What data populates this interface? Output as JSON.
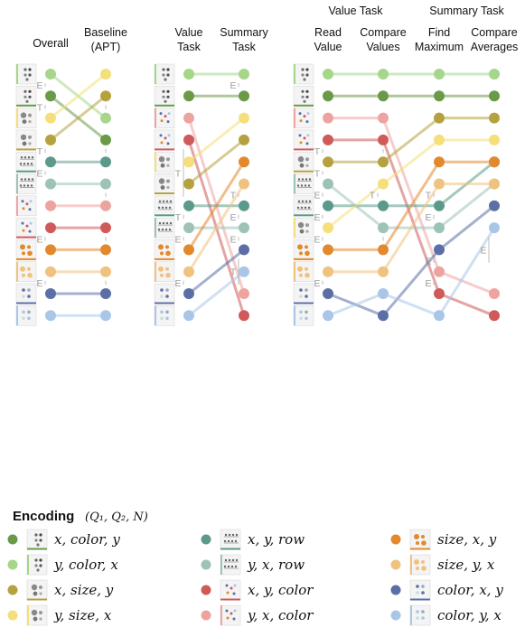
{
  "colors": {
    "dark_green": "#6a9a48",
    "light_green": "#a6d68a",
    "olive": "#b5a23f",
    "yellow": "#f5df7a",
    "dark_teal": "#5b9a8a",
    "light_teal": "#9dc2b6",
    "red": "#d05a5a",
    "pink": "#eda4a0",
    "orange": "#e3892d",
    "light_orange": "#f0c27f",
    "dark_blue": "#5b6fa6",
    "light_blue": "#a9c6e7",
    "separator": "#bdbdbd"
  },
  "chart_data": [
    {
      "type": "slope",
      "panel": "overall-vs-baseline",
      "columns": [
        "Overall",
        "Baseline\n(APT)"
      ],
      "top_headers": [],
      "series": [
        {
          "enc": "y_color_x",
          "color": "light_green",
          "ranks": [
            1,
            3
          ]
        },
        {
          "enc": "x_color_y",
          "color": "dark_green",
          "ranks": [
            2,
            4
          ]
        },
        {
          "enc": "y_size_x",
          "color": "yellow",
          "ranks": [
            3,
            1
          ]
        },
        {
          "enc": "x_size_y",
          "color": "olive",
          "ranks": [
            4,
            2
          ]
        },
        {
          "enc": "x_y_row",
          "color": "dark_teal",
          "ranks": [
            5,
            5
          ]
        },
        {
          "enc": "y_x_row",
          "color": "light_teal",
          "ranks": [
            6,
            6
          ]
        },
        {
          "enc": "y_x_color",
          "color": "pink",
          "ranks": [
            7,
            7
          ]
        },
        {
          "enc": "x_y_color",
          "color": "red",
          "ranks": [
            8,
            8
          ]
        },
        {
          "enc": "size_x_y",
          "color": "orange",
          "ranks": [
            9,
            9
          ]
        },
        {
          "enc": "size_y_x",
          "color": "light_orange",
          "ranks": [
            10,
            10
          ]
        },
        {
          "enc": "color_x_y",
          "color": "dark_blue",
          "ranks": [
            11,
            11
          ]
        },
        {
          "enc": "color_y_x",
          "color": "light_blue",
          "ranks": [
            12,
            12
          ]
        }
      ],
      "separators": [
        {
          "col": 0,
          "from": 1,
          "to": 2,
          "label": "E"
        },
        {
          "col": 0,
          "from": 2,
          "to": 3,
          "label": "T"
        },
        {
          "col": 0,
          "from": 4,
          "to": 5,
          "label": "T"
        },
        {
          "col": 0,
          "from": 5,
          "to": 6,
          "label": "E"
        },
        {
          "col": 0,
          "from": 8,
          "to": 9,
          "label": "E"
        },
        {
          "col": 0,
          "from": 10,
          "to": 11,
          "label": "E"
        },
        {
          "col": 1,
          "from": 2,
          "to": 3,
          "label": ""
        },
        {
          "col": 1,
          "from": 4,
          "to": 5,
          "label": ""
        },
        {
          "col": 1,
          "from": 6,
          "to": 7,
          "label": ""
        },
        {
          "col": 1,
          "from": 8,
          "to": 9,
          "label": ""
        },
        {
          "col": 1,
          "from": 10,
          "to": 11,
          "label": ""
        }
      ]
    },
    {
      "type": "slope",
      "panel": "value-vs-summary",
      "columns": [
        "Value\nTask",
        "Summary\nTask"
      ],
      "top_headers": [],
      "series": [
        {
          "enc": "y_color_x",
          "color": "light_green",
          "ranks": [
            1,
            1
          ]
        },
        {
          "enc": "x_color_y",
          "color": "dark_green",
          "ranks": [
            2,
            2
          ]
        },
        {
          "enc": "y_x_color",
          "color": "pink",
          "ranks": [
            3,
            11
          ]
        },
        {
          "enc": "x_y_color",
          "color": "red",
          "ranks": [
            4,
            12
          ]
        },
        {
          "enc": "y_size_x",
          "color": "yellow",
          "ranks": [
            5,
            3
          ]
        },
        {
          "enc": "x_size_y",
          "color": "olive",
          "ranks": [
            6,
            4
          ]
        },
        {
          "enc": "x_y_row",
          "color": "dark_teal",
          "ranks": [
            7,
            7
          ]
        },
        {
          "enc": "y_x_row",
          "color": "light_teal",
          "ranks": [
            8,
            8
          ]
        },
        {
          "enc": "size_x_y",
          "color": "orange",
          "ranks": [
            9,
            5
          ]
        },
        {
          "enc": "size_y_x",
          "color": "light_orange",
          "ranks": [
            10,
            6
          ]
        },
        {
          "enc": "color_x_y",
          "color": "dark_blue",
          "ranks": [
            11,
            9
          ]
        },
        {
          "enc": "color_y_x",
          "color": "light_blue",
          "ranks": [
            12,
            10
          ]
        }
      ],
      "separators": [
        {
          "col": 0,
          "from": 4,
          "to": 7,
          "label": "T"
        },
        {
          "col": 0,
          "from": 7,
          "to": 8,
          "label": "T"
        },
        {
          "col": 0,
          "from": 8,
          "to": 9,
          "label": "E"
        },
        {
          "col": 0,
          "from": 10,
          "to": 11,
          "label": "E"
        },
        {
          "col": 1,
          "from": 1,
          "to": 2,
          "label": "E"
        },
        {
          "col": 1,
          "from": 6,
          "to": 7,
          "label": "T"
        },
        {
          "col": 1,
          "from": 7,
          "to": 8,
          "label": "E"
        },
        {
          "col": 1,
          "from": 8,
          "to": 9,
          "label": "E"
        },
        {
          "col": 1,
          "from": 9,
          "to": 11,
          "label": "T"
        }
      ]
    },
    {
      "type": "slope",
      "panel": "subtasks",
      "columns": [
        "Read\nValue",
        "Compare\nValues",
        "Find\nMaximum",
        "Compare\nAverages"
      ],
      "top_headers": [
        {
          "label": "Value Task",
          "cols": [
            0,
            1
          ]
        },
        {
          "label": "Summary Task",
          "cols": [
            2,
            3
          ]
        }
      ],
      "series": [
        {
          "enc": "y_color_x",
          "color": "light_green",
          "ranks": [
            1,
            1,
            1,
            1
          ]
        },
        {
          "enc": "x_color_y",
          "color": "dark_green",
          "ranks": [
            2,
            2,
            2,
            2
          ]
        },
        {
          "enc": "y_x_color",
          "color": "pink",
          "ranks": [
            3,
            3,
            10,
            11
          ]
        },
        {
          "enc": "x_y_color",
          "color": "red",
          "ranks": [
            4,
            4,
            11,
            12
          ]
        },
        {
          "enc": "x_size_y",
          "color": "olive",
          "ranks": [
            5,
            5,
            3,
            3
          ]
        },
        {
          "enc": "y_x_row",
          "color": "light_teal",
          "ranks": [
            6,
            8,
            8,
            6
          ]
        },
        {
          "enc": "x_y_row",
          "color": "dark_teal",
          "ranks": [
            7,
            7,
            7,
            5
          ]
        },
        {
          "enc": "y_size_x",
          "color": "yellow",
          "ranks": [
            8,
            6,
            4,
            4
          ]
        },
        {
          "enc": "size_x_y",
          "color": "orange",
          "ranks": [
            9,
            9,
            5,
            5
          ]
        },
        {
          "enc": "size_y_x",
          "color": "light_orange",
          "ranks": [
            10,
            10,
            6,
            6
          ]
        },
        {
          "enc": "color_x_y",
          "color": "dark_blue",
          "ranks": [
            11,
            12,
            9,
            7
          ]
        },
        {
          "enc": "color_y_x",
          "color": "light_blue",
          "ranks": [
            12,
            11,
            12,
            8
          ]
        }
      ],
      "separators": [
        {
          "col": 0,
          "from": 4,
          "to": 5,
          "label": "T"
        },
        {
          "col": 0,
          "from": 5,
          "to": 6,
          "label": "T"
        },
        {
          "col": 0,
          "from": 6,
          "to": 7,
          "label": "E"
        },
        {
          "col": 0,
          "from": 7,
          "to": 8,
          "label": "E"
        },
        {
          "col": 0,
          "from": 8,
          "to": 9,
          "label": "E"
        },
        {
          "col": 0,
          "from": 10,
          "to": 11,
          "label": "E"
        },
        {
          "col": 1,
          "from": 4,
          "to": 5,
          "label": ""
        },
        {
          "col": 1,
          "from": 6,
          "to": 7,
          "label": "T"
        },
        {
          "col": 1,
          "from": 8,
          "to": 9,
          "label": ""
        },
        {
          "col": 2,
          "from": 6,
          "to": 7,
          "label": "T"
        },
        {
          "col": 2,
          "from": 7,
          "to": 8,
          "label": "E"
        },
        {
          "col": 2,
          "from": 9,
          "to": 10,
          "label": "E"
        },
        {
          "col": 2,
          "from": 10,
          "to": 11,
          "label": "E"
        },
        {
          "col": 3,
          "from": 8,
          "to": 10,
          "label": "E"
        }
      ]
    }
  ],
  "legend": {
    "title": "Encoding",
    "subtitle": "(Q₁, Q₂, N)",
    "items": [
      {
        "enc": "x_color_y",
        "color": "dark_green",
        "label": "x, color, y"
      },
      {
        "enc": "y_color_x",
        "color": "light_green",
        "label": "y, color, x"
      },
      {
        "enc": "x_size_y",
        "color": "olive",
        "label": "x, size, y"
      },
      {
        "enc": "y_size_x",
        "color": "yellow",
        "label": "y, size, x"
      },
      {
        "enc": "x_y_row",
        "color": "dark_teal",
        "label": "x, y, row"
      },
      {
        "enc": "y_x_row",
        "color": "light_teal",
        "label": "y, x, row"
      },
      {
        "enc": "x_y_color",
        "color": "red",
        "label": "x, y, color"
      },
      {
        "enc": "y_x_color",
        "color": "pink",
        "label": "y, x, color"
      },
      {
        "enc": "size_x_y",
        "color": "orange",
        "label": "size, x, y"
      },
      {
        "enc": "size_y_x",
        "color": "light_orange",
        "label": "size, y, x"
      },
      {
        "enc": "color_x_y",
        "color": "dark_blue",
        "label": "color, x, y"
      },
      {
        "enc": "color_y_x",
        "color": "light_blue",
        "label": "color, y, x"
      }
    ]
  }
}
